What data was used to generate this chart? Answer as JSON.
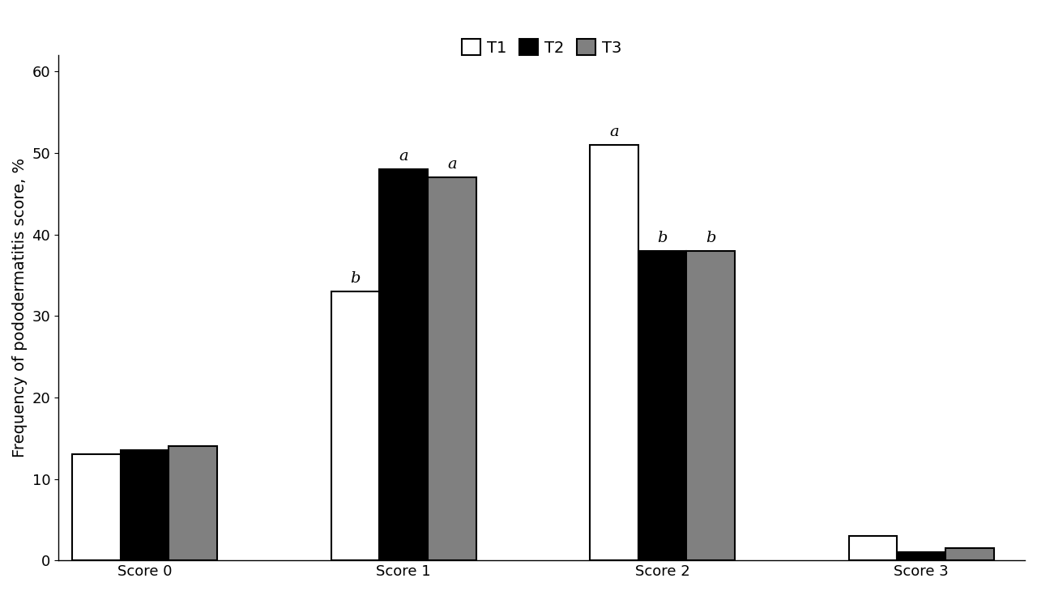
{
  "categories": [
    "Score 0",
    "Score 1",
    "Score 2",
    "Score 3"
  ],
  "series": {
    "T1": [
      13,
      33,
      51,
      3
    ],
    "T2": [
      13.5,
      48,
      38,
      1
    ],
    "T3": [
      14,
      47,
      38,
      1.5
    ]
  },
  "colors": {
    "T1": "#ffffff",
    "T2": "#000000",
    "T3": "#808080"
  },
  "edge_colors": {
    "T1": "#000000",
    "T2": "#000000",
    "T3": "#000000"
  },
  "ylabel": "Frequency of pododermatitis score, %",
  "ylim": [
    0,
    62
  ],
  "yticks": [
    0,
    10,
    20,
    30,
    40,
    50,
    60
  ],
  "bar_width": 0.28,
  "legend_labels": [
    "T1",
    "T2",
    "T3"
  ],
  "group_positions": [
    0.5,
    2.0,
    3.5,
    5.0
  ],
  "annotations": {
    "Score 1": {
      "T1": "b",
      "T2": "a",
      "T3": "a"
    },
    "Score 2": {
      "T1": "a",
      "T2": "b",
      "T3": "b"
    }
  },
  "annotation_fontsize": 14,
  "axis_fontsize": 14,
  "tick_fontsize": 13,
  "legend_fontsize": 14,
  "background_color": "#ffffff"
}
